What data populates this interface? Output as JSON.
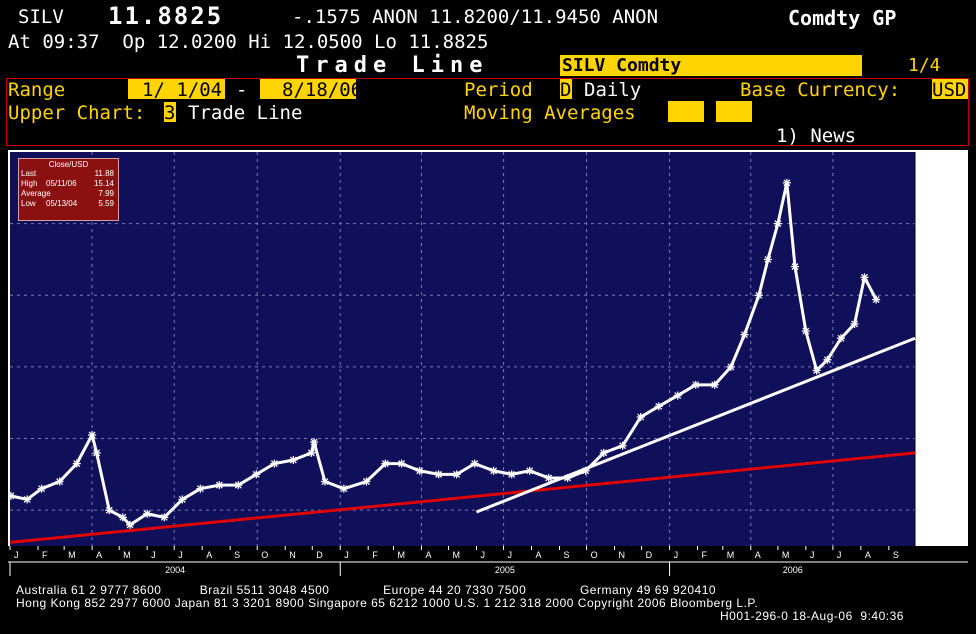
{
  "header": {
    "ticker": "SILV",
    "last": "11.8825",
    "change_line": "-.1575 ANON 11.8200/11.9450 ANON",
    "app": "Comdty GP",
    "time_line": "At 09:37  Op 12.0200 Hi 12.0500 Lo 11.8825",
    "title": "Trade Line",
    "security_box": "SILV Comdty",
    "page": "1/4"
  },
  "controls": {
    "range_label": "Range",
    "range_start": "1/ 1/04",
    "range_dash": "-",
    "range_end": "8/18/06",
    "period_label": "Period",
    "period_code": "D",
    "period_text": "Daily",
    "currency_label": "Base Currency:",
    "currency": "USD",
    "upper_label": "Upper Chart:",
    "upper_code": "3",
    "upper_text": "Trade Line",
    "ma_label": "Moving Averages",
    "news": "1) News"
  },
  "legend_box": {
    "title": "Close/USD",
    "rows": [
      {
        "label": "Last",
        "date": "",
        "value": "11.88"
      },
      {
        "label": "High",
        "date": "05/11/06",
        "value": "15.14"
      },
      {
        "label": "Average",
        "date": "",
        "value": "7.99"
      },
      {
        "label": "Low",
        "date": "05/13/04",
        "value": "5.59"
      }
    ]
  },
  "footer": {
    "line1": "Australia 61 2 9777 8600          Brazil 5511 3048 4500              Europe 44 20 7330 7500              Germany 49 69 920410",
    "line2": "Hong Kong 852 2977 6000 Japan 81 3 3201 8900 Singapore 65 6212 1000 U.S. 1 212 318 2000 Copyright 2006 Bloomberg L.P.",
    "line3": "H001-296-0 18-Aug-06  9:40:36"
  },
  "colors": {
    "plot_bg": "#0f0f5a",
    "grid": "#7a7ab8",
    "price": "#ffffff",
    "support_line": "#e00000",
    "trend_line": "#ffffff",
    "header_accent": "#ffd400",
    "legend_bg": "#8b1010"
  },
  "chart_data": {
    "type": "line",
    "title": "",
    "xlabel": "",
    "ylabel": "",
    "ylim": [
      5.0,
      16.0
    ],
    "yticks": [
      "6.00",
      "8.00",
      "10.00",
      "12.00",
      "14.00"
    ],
    "ytick_values": [
      6,
      8,
      10,
      12,
      14
    ],
    "grid": true,
    "month_labels": [
      "J",
      "F",
      "M",
      "A",
      "M",
      "J",
      "J",
      "A",
      "S",
      "O",
      "N",
      "D",
      "J",
      "F",
      "M",
      "A",
      "M",
      "J",
      "J",
      "A",
      "S",
      "O",
      "N",
      "D",
      "J",
      "F",
      "M",
      "A",
      "M",
      "J",
      "J",
      "A",
      "S"
    ],
    "year_labels": [
      {
        "label": "2004",
        "start": "2004-01"
      },
      {
        "label": "2005",
        "start": "2005-01"
      },
      {
        "label": "2006",
        "start": "2006-01"
      }
    ],
    "series": [
      {
        "type": "line",
        "x": [
          "2004-01-02",
          "2004-01-20",
          "2004-02-05",
          "2004-02-25",
          "2004-03-15",
          "2004-04-01",
          "2004-04-06",
          "2004-04-20",
          "2004-05-05",
          "2004-05-13",
          "2004-06-01",
          "2004-06-20",
          "2004-07-10",
          "2004-07-30",
          "2004-08-20",
          "2004-09-10",
          "2004-09-30",
          "2004-10-20",
          "2004-11-10",
          "2004-11-30",
          "2004-12-03",
          "2004-12-15",
          "2005-01-05",
          "2005-01-30",
          "2005-02-20",
          "2005-03-10",
          "2005-03-30",
          "2005-04-20",
          "2005-05-10",
          "2005-05-30",
          "2005-06-20",
          "2005-07-10",
          "2005-07-30",
          "2005-08-20",
          "2005-09-10",
          "2005-09-30",
          "2005-10-20",
          "2005-11-10",
          "2005-11-30",
          "2005-12-20",
          "2006-01-10",
          "2006-01-30",
          "2006-02-20",
          "2006-03-10",
          "2006-03-25",
          "2006-04-10",
          "2006-04-20",
          "2006-05-01",
          "2006-05-11",
          "2006-05-20",
          "2006-06-01",
          "2006-06-13",
          "2006-06-25",
          "2006-07-10",
          "2006-07-25",
          "2006-08-05",
          "2006-08-18"
        ],
        "values": [
          6.4,
          6.3,
          6.6,
          6.8,
          7.3,
          8.1,
          7.6,
          6.0,
          5.8,
          5.59,
          5.9,
          5.8,
          6.3,
          6.6,
          6.7,
          6.7,
          7.0,
          7.3,
          7.4,
          7.6,
          7.9,
          6.8,
          6.6,
          6.8,
          7.3,
          7.3,
          7.1,
          7.0,
          7.0,
          7.3,
          7.1,
          7.0,
          7.1,
          6.9,
          6.9,
          7.1,
          7.6,
          7.8,
          8.6,
          8.9,
          9.2,
          9.5,
          9.5,
          10.0,
          10.9,
          12.0,
          13.0,
          14.0,
          15.14,
          12.8,
          11.0,
          9.9,
          10.2,
          10.8,
          11.2,
          12.5,
          11.88
        ]
      },
      {
        "type": "trendline",
        "x": [
          "2004-01-01",
          "2006-09-30"
        ],
        "values": [
          5.1,
          7.6
        ]
      },
      {
        "type": "trendline",
        "x": [
          "2005-06-01",
          "2006-09-30"
        ],
        "values": [
          5.95,
          10.8
        ]
      }
    ]
  }
}
